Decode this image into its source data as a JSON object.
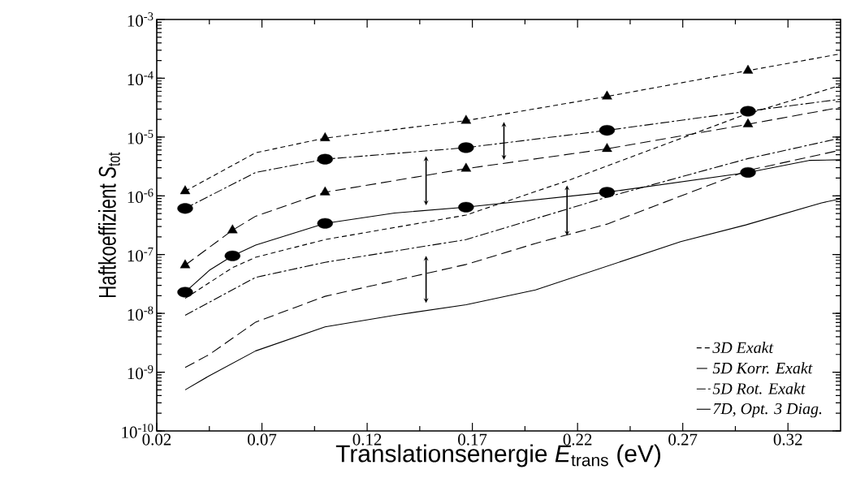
{
  "chart_data": {
    "type": "line",
    "xlabel": "Translationsenergie *E*$_{trans}$ (eV)",
    "ylabel": "Haftkoeffizient *S*$_{tot}$",
    "log": "y",
    "xlim": [
      0.02,
      0.345
    ],
    "ylim": [
      1e-10,
      0.001
    ],
    "xticks": [
      0.02,
      0.07,
      0.12,
      0.17,
      0.22,
      0.27,
      0.32
    ],
    "yticks": [
      {
        "value": 1e-10,
        "label": "10$^{-10}$"
      },
      {
        "value": 1e-09,
        "label": "10$^{-9}$"
      },
      {
        "value": 1e-08,
        "label": "10$^{-8}$"
      },
      {
        "value": 1e-07,
        "label": "10$^{-7}$"
      },
      {
        "value": 1e-06,
        "label": "10$^{-6}$"
      },
      {
        "value": 1e-05,
        "label": "10$^{-5}$"
      },
      {
        "value": 0.0001,
        "label": "10$^{-4}$"
      },
      {
        "value": 0.001,
        "label": "10$^{-3}$"
      }
    ],
    "legend": "bottom right",
    "marker": "none",
    "series": [
      {
        "name": "3D Exakt",
        "color": "#000000",
        "line_style": "dashed",
        "x": [
          0.0335,
          0.056,
          0.067,
          0.1,
          0.167,
          0.216,
          0.298,
          0.345
        ],
        "values": [
          1.8e-08,
          6e-08,
          9e-08,
          1.8e-07,
          4.7e-07,
          1.85e-06,
          2.3e-05,
          7.6e-05
        ]
      },
      {
        "name": "5D Korr. Exakt",
        "color": "#000000",
        "line_style": "longdashed",
        "x": [
          0.0335,
          0.045,
          0.067,
          0.1,
          0.167,
          0.2,
          0.234,
          0.301,
          0.345
        ],
        "values": [
          1.2e-09,
          2e-09,
          7.1e-09,
          1.95e-08,
          6.8e-08,
          1.55e-07,
          3.3e-07,
          2.7e-06,
          6e-06
        ]
      },
      {
        "name": "5D Rot. Exakt",
        "color": "#000000",
        "line_style": "dashdot",
        "x": [
          0.0335,
          0.067,
          0.1,
          0.167,
          0.234,
          0.301,
          0.345
        ],
        "values": [
          9.3e-09,
          4.1e-08,
          7.4e-08,
          1.8e-07,
          9.5e-07,
          4.3e-06,
          9.6e-06
        ]
      },
      {
        "name": "7D, Opt. 3 Diag.",
        "color": "#000000",
        "line_style": "solid",
        "x": [
          0.0335,
          0.045,
          0.067,
          0.1,
          0.133,
          0.167,
          0.2,
          0.269,
          0.3,
          0.336,
          0.345
        ],
        "values": [
          5e-10,
          8.7e-10,
          2.3e-09,
          5.9e-09,
          9.3e-09,
          1.4e-08,
          2.5e-08,
          1.66e-07,
          3.2e-07,
          7.6e-07,
          8.9e-07
        ]
      },
      {
        "color": "#000000",
        "line_style": "dashed",
        "x": [
          0.0335,
          0.067,
          0.1,
          0.167,
          0.234,
          0.301,
          0.345
        ],
        "values": [
          1.2e-06,
          5.4e-06,
          9.6e-06,
          1.9e-05,
          4.9e-05,
          0.000135,
          0.00026
        ]
      },
      {
        "color": "#000000",
        "line_style": "dashdot",
        "x": [
          0.0335,
          0.067,
          0.1,
          0.167,
          0.234,
          0.301,
          0.345
        ],
        "values": [
          6.1e-07,
          2.5e-06,
          4.2e-06,
          6.6e-06,
          1.3e-05,
          2.75e-05,
          4.4e-05
        ]
      },
      {
        "color": "#000000",
        "line_style": "longdashed",
        "x": [
          0.0335,
          0.056,
          0.067,
          0.1,
          0.167,
          0.234,
          0.301,
          0.345
        ],
        "values": [
          6.6e-08,
          2.6e-07,
          4.5e-07,
          1.15e-06,
          2.9e-06,
          6.3e-06,
          1.65e-05,
          3.2e-05
        ]
      },
      {
        "color": "#000000",
        "line_style": "solid",
        "x": [
          0.0335,
          0.045,
          0.056,
          0.067,
          0.1,
          0.133,
          0.167,
          0.234,
          0.301,
          0.33,
          0.345
        ],
        "values": [
          2.3e-08,
          5.4e-08,
          9.5e-08,
          1.45e-07,
          3.4e-07,
          5.1e-07,
          6.4e-07,
          1.15e-06,
          2.5e-06,
          4e-06,
          4.1e-06
        ]
      },
      {
        "type": "scatter",
        "color": "#000000",
        "marker": "triangle",
        "x": [
          0.0335,
          0.1,
          0.167,
          0.234,
          0.301
        ],
        "values": [
          1.2e-06,
          9.6e-06,
          1.9e-05,
          4.9e-05,
          0.000135
        ]
      },
      {
        "type": "scatter",
        "color": "#000000",
        "marker": "circle",
        "x": [
          0.0335,
          0.1,
          0.167,
          0.234,
          0.301
        ],
        "values": [
          6.1e-07,
          4.2e-06,
          6.6e-06,
          1.3e-05,
          2.75e-05
        ]
      },
      {
        "type": "scatter",
        "color": "#000000",
        "marker": "triangle",
        "x": [
          0.0335,
          0.056,
          0.1,
          0.167,
          0.234,
          0.301
        ],
        "values": [
          6.6e-08,
          2.6e-07,
          1.15e-06,
          2.9e-06,
          6.3e-06,
          1.65e-05
        ]
      },
      {
        "type": "scatter",
        "color": "#000000",
        "marker": "circle",
        "x": [
          0.0335,
          0.056,
          0.1,
          0.167,
          0.234,
          0.301
        ],
        "values": [
          2.3e-08,
          9.5e-08,
          3.4e-07,
          6.4e-07,
          1.15e-06,
          2.5e-06
        ]
      }
    ]
  }
}
